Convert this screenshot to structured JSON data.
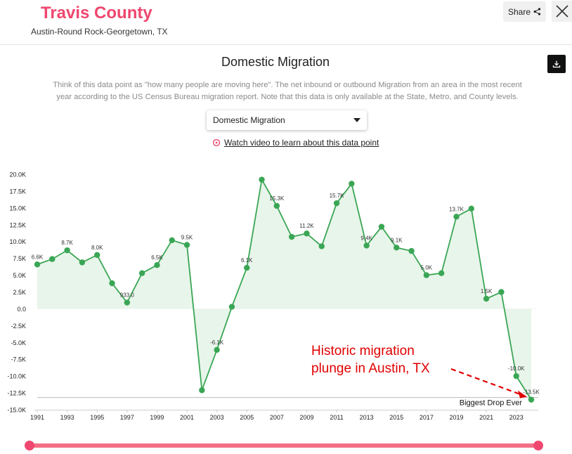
{
  "header": {
    "title": "Travis County",
    "subtitle": "Austin-Round Rock-Georgetown, TX",
    "share_label": "Share"
  },
  "panel": {
    "title": "Domestic Migration",
    "description": "Think of this data point as \"how many people are moving here\". The net inbound or outbound Migration from an area in the most recent year according to the US Census Bureau migration report. Note that this data is only available at the State, Metro, and County levels.",
    "select_value": "Domestic Migration",
    "video_link": "Watch video to learn about this data point"
  },
  "colors": {
    "brand": "#ef476f",
    "line": "#3aa655",
    "marker": "#3aa655",
    "fill": "#e6f4e8",
    "annotation": "#e00000"
  },
  "chart_data": {
    "type": "line",
    "title": "Domestic Migration",
    "x": [
      1991,
      1992,
      1993,
      1994,
      1995,
      1996,
      1997,
      1998,
      1999,
      2000,
      2001,
      2002,
      2003,
      2004,
      2005,
      2006,
      2007,
      2008,
      2009,
      2010,
      2011,
      2012,
      2013,
      2014,
      2015,
      2016,
      2017,
      2018,
      2019,
      2020,
      2021,
      2022,
      2023,
      2024
    ],
    "values": [
      6600,
      7400,
      8700,
      6900,
      8000,
      3800,
      933,
      5300,
      6500,
      10200,
      9500,
      -12100,
      -6100,
      300,
      6100,
      19200,
      15300,
      10700,
      11200,
      9300,
      15700,
      18600,
      9400,
      12200,
      9100,
      8600,
      5000,
      5300,
      13700,
      14900,
      1500,
      2500,
      -10000,
      -13500
    ],
    "data_labels": {
      "1991": "6.6K",
      "1993": "8.7K",
      "1995": "8.0K",
      "1997": "933.0",
      "1999": "6.5K",
      "2001": "9.5K",
      "2003": "-6.1K",
      "2005": "6.1K",
      "2007": "15.3K",
      "2009": "11.2K",
      "2011": "15.7K",
      "2013": "9.4K",
      "2015": "9.1K",
      "2017": "5.0K",
      "2019": "13.7K",
      "2021": "1.5K",
      "2023": "-10.0K",
      "2024": "-13.5K"
    },
    "ylim": [
      -15000,
      20000
    ],
    "yticks": [
      20000,
      17500,
      15000,
      12500,
      10000,
      7500,
      5000,
      2500,
      0,
      -2500,
      -5000,
      -7500,
      -10000,
      -12500,
      -15000
    ],
    "ytick_labels": [
      "20.0K",
      "17.5K",
      "15.0K",
      "12.5K",
      "10.0K",
      "7.5K",
      "5.0K",
      "2.5K",
      "0.0",
      "-2.5K",
      "-5.0K",
      "-7.5K",
      "-10.0K",
      "-12.5K",
      "-15.0K"
    ],
    "xtick_labels": [
      "1991",
      "1993",
      "1995",
      "1997",
      "1999",
      "2001",
      "2003",
      "2005",
      "2007",
      "2009",
      "2011",
      "2013",
      "2015",
      "2017",
      "2019",
      "2021",
      "2023"
    ],
    "reference_line": {
      "value": -13500,
      "label": "Biggest Drop Ever"
    },
    "annotation": {
      "text_line1": "Historic migration",
      "text_line2": "plunge in Austin, TX",
      "target_x": 2024
    },
    "xlabel": "",
    "ylabel": ""
  }
}
